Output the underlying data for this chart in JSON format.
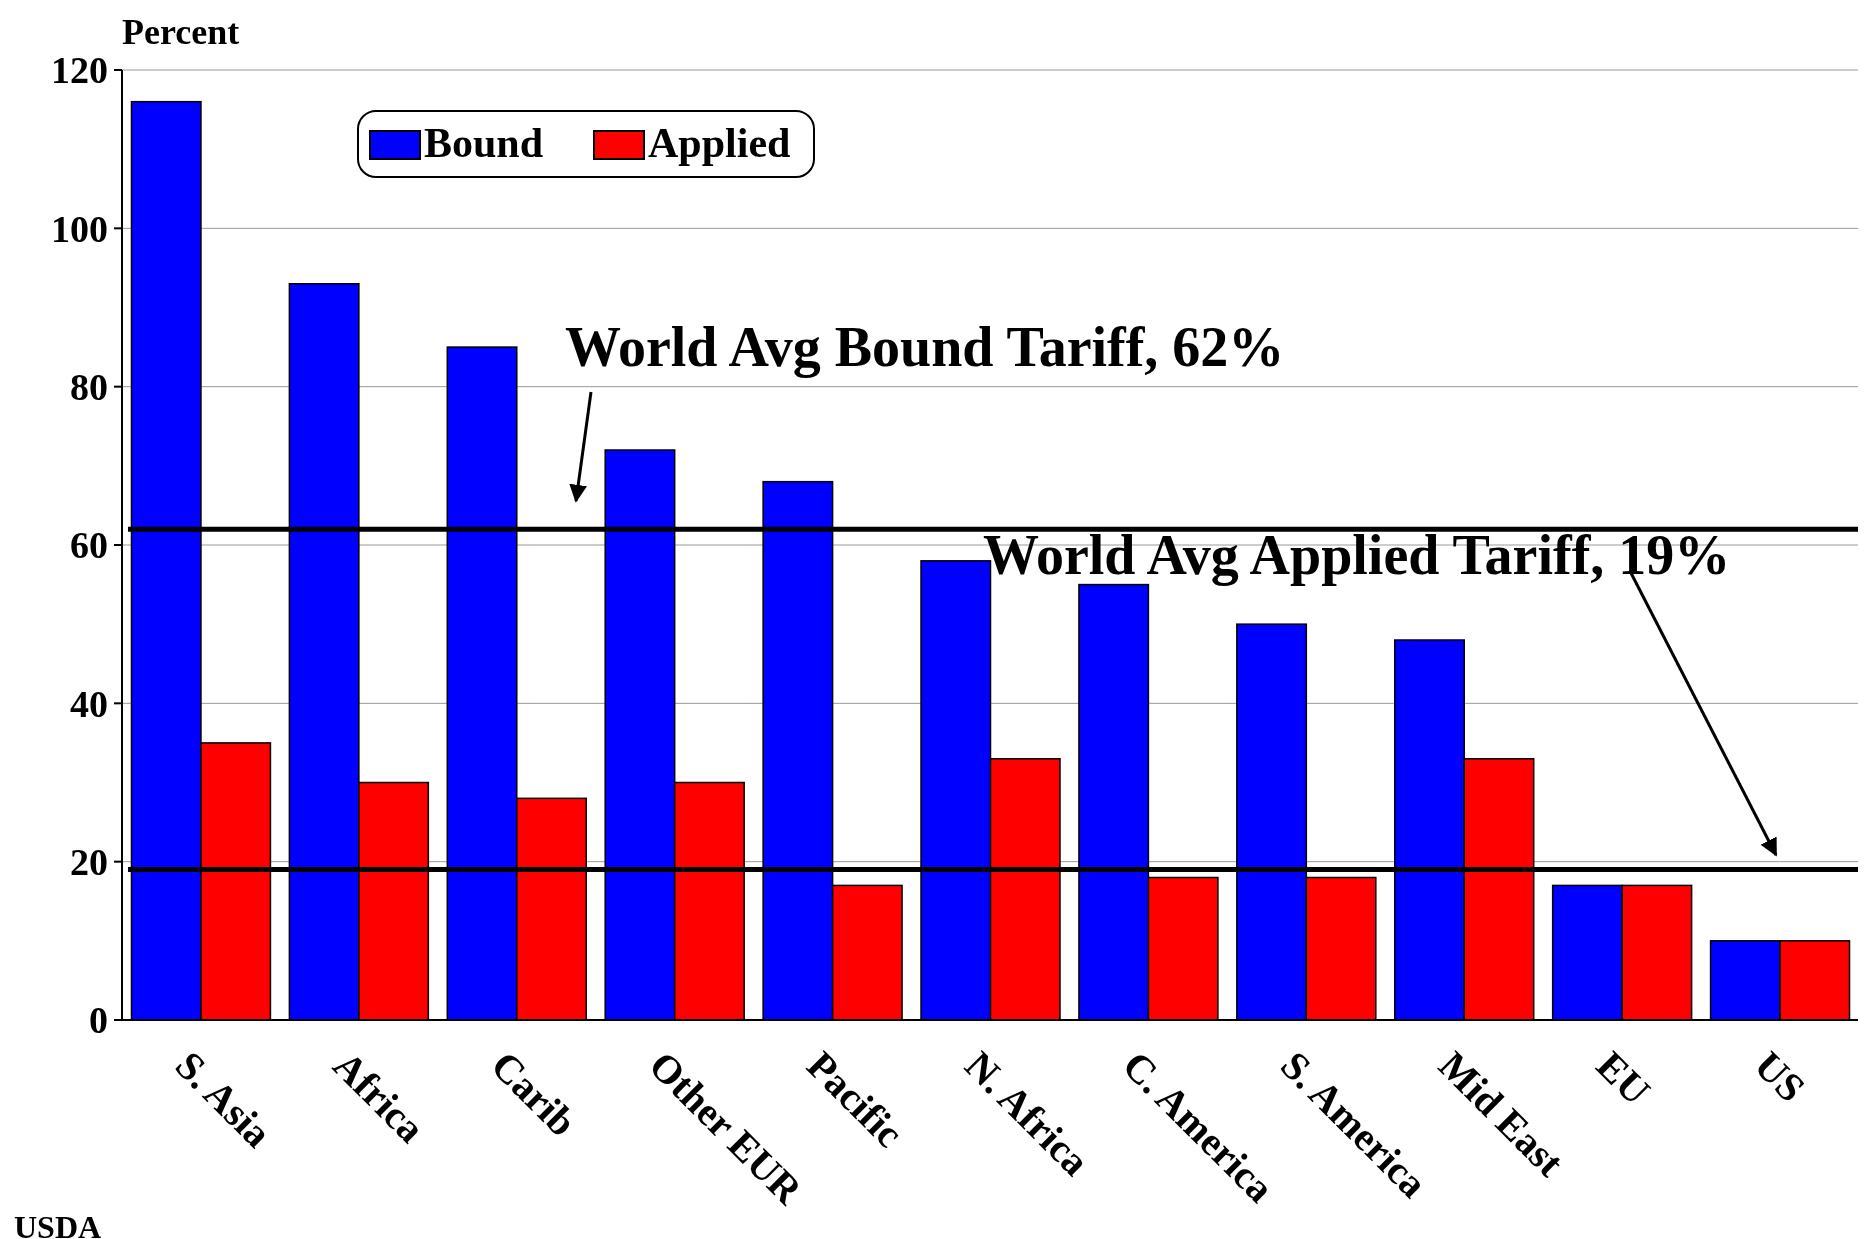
{
  "chart_data": {
    "type": "bar",
    "ylabel": "Percent",
    "categories": [
      "S. Asia",
      "Africa",
      "Carib",
      "Other EUR",
      "Pacific",
      "N. Africa",
      "C. America",
      "S. America",
      "Mid East",
      "EU",
      "US"
    ],
    "series": [
      {
        "name": "Bound",
        "color": "#0000ff",
        "values": [
          116,
          93,
          85,
          72,
          68,
          58,
          55,
          50,
          48,
          17,
          10
        ]
      },
      {
        "name": "Applied",
        "color": "#ff0000",
        "values": [
          35,
          30,
          28,
          30,
          17,
          33,
          18,
          18,
          33,
          17,
          10
        ]
      }
    ],
    "ylim": [
      0,
      120
    ],
    "yticks": [
      0,
      20,
      40,
      60,
      80,
      100,
      120
    ],
    "grid": "y",
    "legend": "top left",
    "ref_lines": [
      {
        "axis": "y",
        "value": 62,
        "color": "#000000"
      },
      {
        "axis": "y",
        "value": 19,
        "color": "#000000"
      }
    ],
    "annotations": [
      "World Avg Bound Tariff, 62%",
      "World Avg Applied Tariff, 19%",
      "USDA"
    ]
  }
}
